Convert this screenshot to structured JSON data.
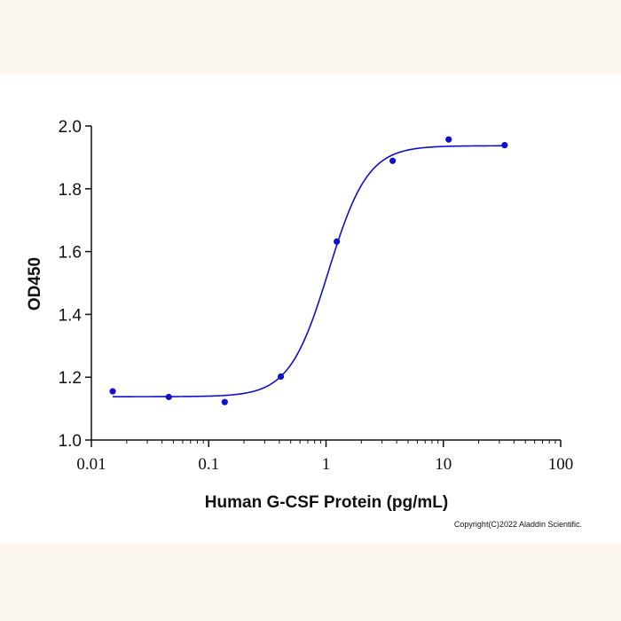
{
  "chart_data": {
    "type": "scatter",
    "title": "",
    "xlabel": "Human G-CSF Protein (pg/mL)",
    "ylabel": "OD450",
    "x_scale": "log",
    "xlim": [
      0.01,
      100
    ],
    "ylim": [
      1.0,
      2.0
    ],
    "x_ticks": [
      "0.01",
      "0.1",
      "1",
      "10",
      "100"
    ],
    "y_ticks": [
      "1.0",
      "1.2",
      "1.4",
      "1.6",
      "1.8",
      "2.0"
    ],
    "grid": false,
    "series": [
      {
        "points": [
          {
            "x": 0.0152,
            "y": 1.155
          },
          {
            "x": 0.0457,
            "y": 1.137
          },
          {
            "x": 0.137,
            "y": 1.121
          },
          {
            "x": 0.412,
            "y": 1.202
          },
          {
            "x": 1.235,
            "y": 1.632
          },
          {
            "x": 3.7,
            "y": 1.889
          },
          {
            "x": 11.1,
            "y": 1.957
          },
          {
            "x": 33.3,
            "y": 1.939
          }
        ],
        "fit": {
          "bottom": 1.138,
          "top": 1.937,
          "ec50": 1.05,
          "hill": 2.6
        }
      }
    ],
    "colors": {
      "series": "#1010cc"
    }
  },
  "copyright": "Copyright(C)2022 Aladdin Scientific."
}
